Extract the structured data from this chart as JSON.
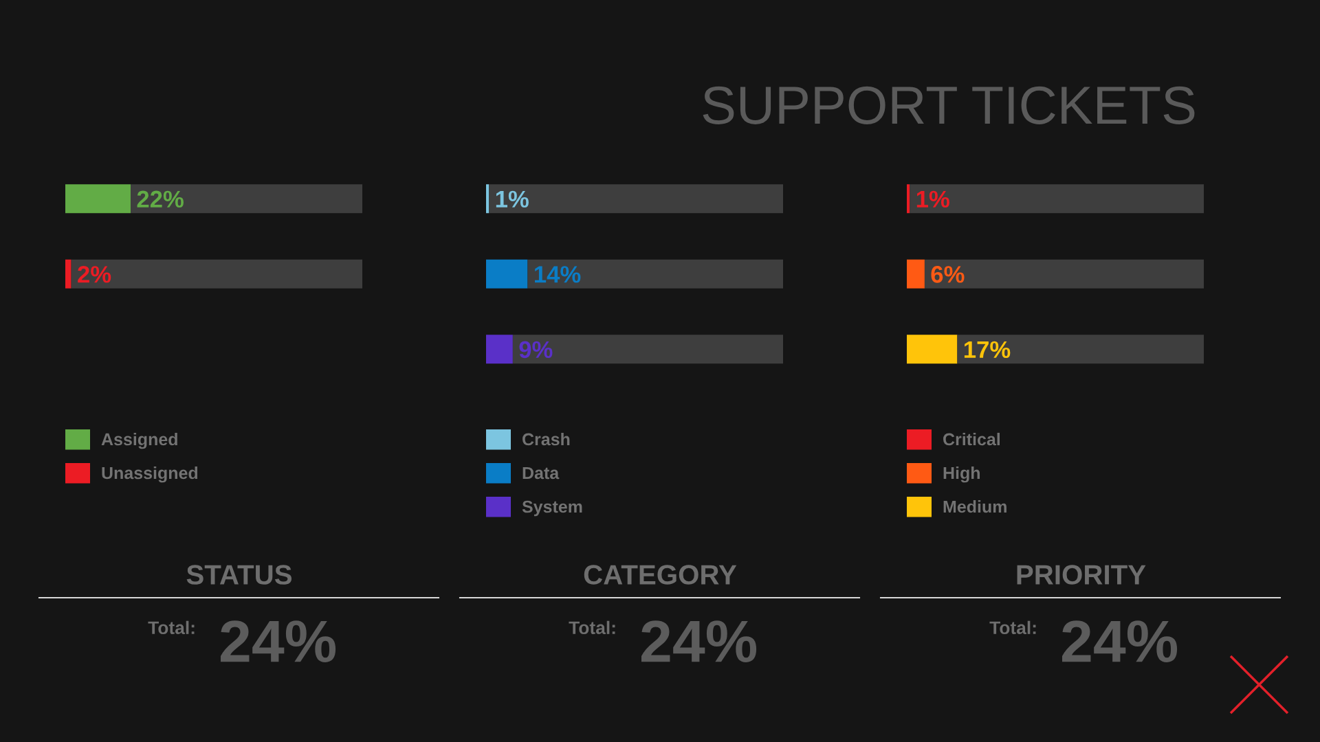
{
  "chart_data": [
    {
      "type": "other",
      "title": "SUPPORT TICKETS"
    },
    {
      "type": "bar",
      "orientation": "horizontal",
      "stacked": true,
      "title": "STATUS",
      "categories": [
        null,
        null
      ],
      "xlim": [
        0,
        100
      ],
      "tick_labels": false,
      "legend": "bottom",
      "series": [
        {
          "name": "Assigned",
          "color": "#62ac46",
          "values": [
            22,
            null
          ],
          "value_labels": [
            "22%",
            null
          ]
        },
        {
          "name": "Unassigned",
          "color": "#ec1c24",
          "values": [
            null,
            2
          ],
          "value_labels": [
            null,
            "2%"
          ]
        },
        {
          "color": "#3e3e3e",
          "values": [
            78,
            98
          ]
        }
      ],
      "annotations": [
        "Total:",
        "24%"
      ]
    },
    {
      "type": "bar",
      "orientation": "horizontal",
      "stacked": true,
      "title": "CATEGORY",
      "categories": [
        null,
        null,
        null
      ],
      "xlim": [
        0,
        100
      ],
      "tick_labels": false,
      "legend": "bottom",
      "series": [
        {
          "name": "Crash",
          "color": "#7cc5e0",
          "values": [
            1,
            null,
            null
          ],
          "value_labels": [
            "1%",
            null,
            null
          ]
        },
        {
          "name": "Data",
          "color": "#0a7dc6",
          "values": [
            null,
            14,
            null
          ],
          "value_labels": [
            null,
            "14%",
            null
          ]
        },
        {
          "name": "System",
          "color": "#5a30c8",
          "values": [
            null,
            null,
            9
          ],
          "value_labels": [
            null,
            null,
            "9%"
          ]
        },
        {
          "color": "#3e3e3e",
          "values": [
            99,
            86,
            91
          ]
        }
      ],
      "annotations": [
        "Total:",
        "24%"
      ]
    },
    {
      "type": "bar",
      "orientation": "horizontal",
      "stacked": true,
      "title": "PRIORITY",
      "categories": [
        null,
        null,
        null
      ],
      "xlim": [
        0,
        100
      ],
      "tick_labels": false,
      "legend": "bottom",
      "series": [
        {
          "name": "Critical",
          "color": "#ec1c24",
          "values": [
            1,
            null,
            null
          ],
          "value_labels": [
            "1%",
            null,
            null
          ]
        },
        {
          "name": "High",
          "color": "#ff5a14",
          "values": [
            null,
            6,
            null
          ],
          "value_labels": [
            null,
            "6%",
            null
          ]
        },
        {
          "name": "Medium",
          "color": "#ffc40a",
          "values": [
            null,
            null,
            17
          ],
          "value_labels": [
            null,
            null,
            "17%"
          ]
        },
        {
          "color": "#3e3e3e",
          "values": [
            99,
            94,
            83
          ]
        }
      ],
      "annotations": [
        "Total:",
        "24%"
      ]
    }
  ]
}
